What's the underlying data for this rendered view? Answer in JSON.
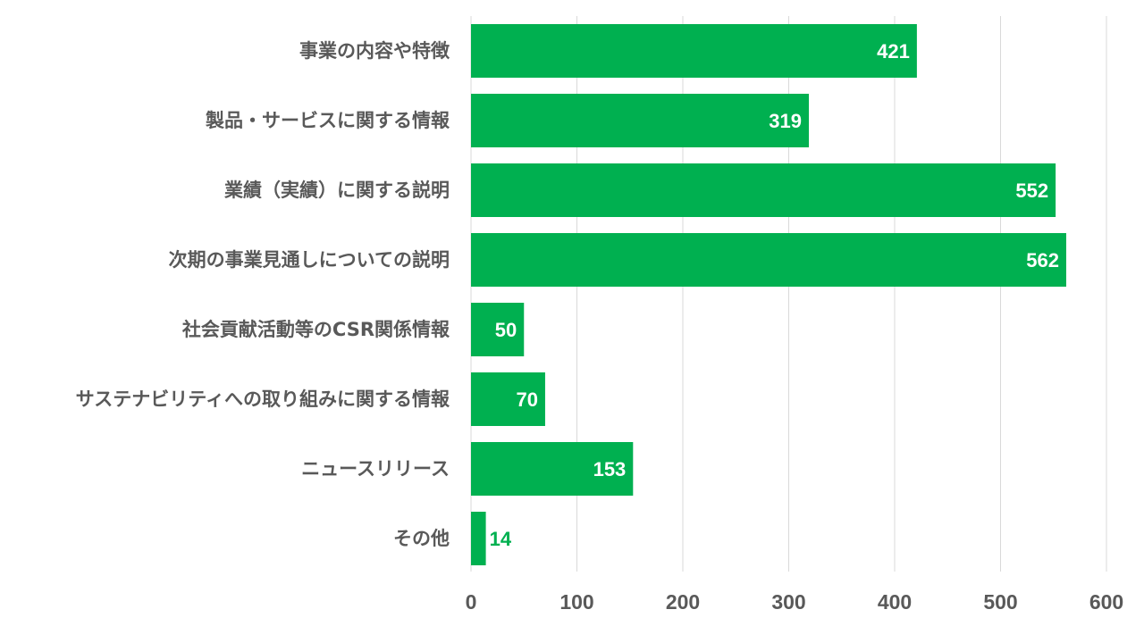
{
  "chart_data": {
    "type": "bar",
    "orientation": "horizontal",
    "categories": [
      "事業の内容や特徴",
      "製品・サービスに関する情報",
      "業績（実績）に関する説明",
      "次期の事業見通しについての説明",
      "社会貢献活動等のCSR関係情報",
      "サステナビリティへの取り組みに関する情報",
      "ニュースリリース",
      "その他"
    ],
    "values": [
      421,
      319,
      552,
      562,
      50,
      70,
      153,
      14
    ],
    "xlim": [
      0,
      600
    ],
    "xticks": [
      0,
      100,
      200,
      300,
      400,
      500,
      600
    ],
    "grid": true,
    "legend": "none",
    "colors": {
      "bar": "#00b050",
      "label_inside": "#ffffff",
      "label_outside": "#00b050",
      "text": "#595959",
      "grid": "#d9d9d9"
    }
  }
}
